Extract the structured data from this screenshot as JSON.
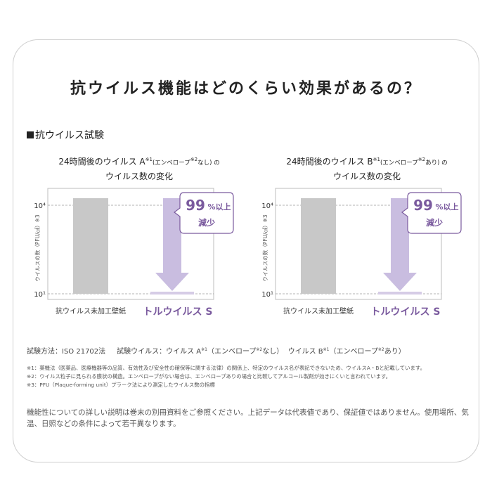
{
  "title": "抗ウイルス機能はどのくらい効果があるの？",
  "section_heading": "抗ウイルス試験",
  "chart_data": [
    {
      "type": "bar",
      "title_main": "24時間後のウイルス A",
      "title_note": "※1",
      "title_paren_open": "(エンベロープ",
      "title_paren_note": "※2",
      "title_paren_close": "なし) の",
      "title_line2": "ウイルス数の変化",
      "ylabel": "ウイルスの数（PFU/㎠）※3",
      "y_scale": "log",
      "ylim": [
        10,
        10000
      ],
      "yticks": [
        "10⁴",
        "10¹"
      ],
      "categories": [
        "抗ウイルス未加工壁紙",
        "トルウイルス S"
      ],
      "values": [
        10000,
        10
      ],
      "callout": {
        "big": "99",
        "unit": "%以上",
        "line2": "減少"
      }
    },
    {
      "type": "bar",
      "title_main": "24時間後のウイルス B",
      "title_note": "※1",
      "title_paren_open": "(エンベロープ",
      "title_paren_note": "※2",
      "title_paren_close": "あり) の",
      "title_line2": "ウイルス数の変化",
      "ylabel": "ウイルスの数（PFU/㎠）※3",
      "y_scale": "log",
      "ylim": [
        10,
        10000
      ],
      "yticks": [
        "10⁴",
        "10¹"
      ],
      "categories": [
        "抗ウイルス未加工壁紙",
        "トルウイルス S"
      ],
      "values": [
        10000,
        10
      ],
      "callout": {
        "big": "99",
        "unit": "%以上",
        "line2": "減少"
      }
    }
  ],
  "test_method": {
    "label": "試験方法：ISO 21702法",
    "virus_label": "試験ウイルス：ウイルス A",
    "note1": "※1",
    "envelope_open": "（エンベロープ",
    "note2": "※2",
    "envelope_none_close": "なし）",
    "virus_b": "ウイルス B",
    "envelope_yes_close": "あり）"
  },
  "notes": [
    "※1：薬機法（医薬品、医療機器等の品質、有効性及び安全性の確保等に関する法律）の関係上、特定のウイルス名が表記できないため、ウイルスA・Bと記載しています。",
    "※2：ウイルス粒子に見られる膜状の構造。エンベロープがない場合は、エンベロープありの場合と比較してアルコール製剤が効きにくいと言われています。",
    "※3：PFU（Plaque-forming unit）プラーク法により測定したウイルス数の指標"
  ],
  "disclaimer": "機能性についての詳しい説明は巻末の別冊資料をご参照ください。上記データは代表値であり、保証値ではありません。使用場所、気温、日照などの条件によって若干異なります。",
  "colors": {
    "bar_gray": "#c8c8c8",
    "purple": "#7a5a9e",
    "arrow": "#c9bde0",
    "grid": "#9a9a9a"
  }
}
